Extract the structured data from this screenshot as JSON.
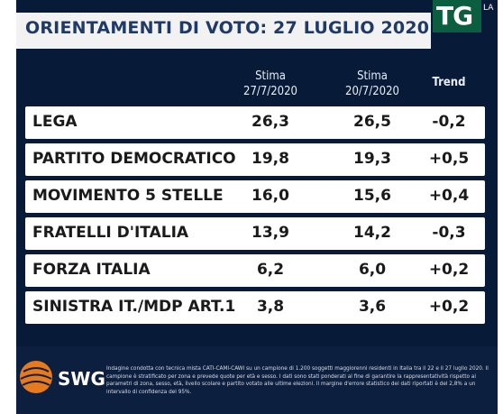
{
  "header": {
    "title": "ORIENTAMENTI DI VOTO: 27 LUGLIO 2020"
  },
  "channel_logo": {
    "text": "TG",
    "subtext": "LA"
  },
  "table": {
    "columns": [
      {
        "line1": "Stima",
        "line2": "27/7/2020"
      },
      {
        "line1": "Stima",
        "line2": "20/7/2020"
      },
      {
        "line1": "Trend",
        "line2": ""
      }
    ],
    "rows": [
      {
        "party": "LEGA",
        "stima_27_7": "26,3",
        "stima_20_7": "26,5",
        "trend": "-0,2"
      },
      {
        "party": "PARTITO DEMOCRATICO",
        "stima_27_7": "19,8",
        "stima_20_7": "19,3",
        "trend": "+0,5"
      },
      {
        "party": "MOVIMENTO 5 STELLE",
        "stima_27_7": "16,0",
        "stima_20_7": "15,6",
        "trend": "+0,4"
      },
      {
        "party": "FRATELLI D'ITALIA",
        "stima_27_7": "13,9",
        "stima_20_7": "14,2",
        "trend": "-0,3"
      },
      {
        "party": "FORZA ITALIA",
        "stima_27_7": "6,2",
        "stima_20_7": "6,0",
        "trend": "+0,2"
      },
      {
        "party": "SINISTRA IT./MDP ART.1",
        "stima_27_7": "3,8",
        "stima_20_7": "3,6",
        "trend": "+0,2"
      }
    ]
  },
  "footer": {
    "brand": "SWG",
    "note": "Indagine condotta con tecnica mista CATI-CAMI-CAWI su un campione di 1.200 soggetti maggiorenni residenti in Italia tra il 22 e il 27 luglio 2020. Il campione è stratificato per zona e prevede quote per età e sesso. I dati sono stati ponderati al fine di garantire la rappresentatività rispetto ai parametri di zona, sesso, età, livello scolare e partito votato alle ultime elezioni. Il margine d'errore statistico dei dati riportati è del 2,8% a un intervallo di confidenza del 95%."
  },
  "colors": {
    "background": "#071a38",
    "title_bar": "#f2f2f2",
    "title_text": "#1f3a66",
    "row_background": "#ffffff",
    "logo_green": "#0b5e3f",
    "swg_orange": "#e87a1e"
  }
}
